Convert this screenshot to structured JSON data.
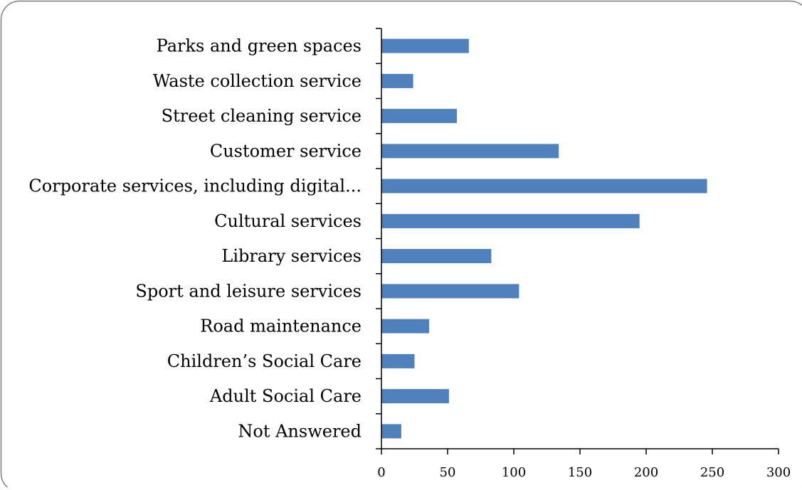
{
  "chart_data": {
    "type": "bar",
    "orientation": "horizontal",
    "categories": [
      "Parks and green spaces",
      "Waste collection service",
      "Street cleaning service",
      "Customer service",
      "Corporate services, including digital...",
      "Cultural services",
      "Library services",
      "Sport and leisure services",
      "Road maintenance",
      "Children’s Social Care",
      "Adult Social Care",
      "Not Answered"
    ],
    "values": [
      66,
      24,
      57,
      134,
      246,
      195,
      83,
      104,
      36,
      25,
      51,
      15
    ],
    "xlim": [
      0,
      300
    ],
    "xticks": [
      "0",
      "50",
      "100",
      "150",
      "200",
      "250",
      "300"
    ],
    "xtick_values": [
      0,
      50,
      100,
      150,
      200,
      250,
      300
    ],
    "title": "",
    "xlabel": "",
    "ylabel": "",
    "grid": false,
    "legend": "none",
    "colors": {
      "bar": "#4f81bd",
      "axis": "#000000",
      "frame": "#7f7f7f"
    }
  }
}
